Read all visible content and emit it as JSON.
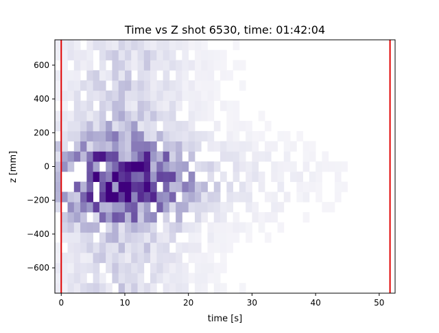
{
  "chart_data": {
    "type": "heatmap",
    "title": "Time vs Z shot 6530, time: 01:42:04",
    "xlabel": "time [s]",
    "ylabel": "z [mm]",
    "xlim": [
      -1,
      52.5
    ],
    "ylim": [
      -750,
      750
    ],
    "xticks": [
      0,
      10,
      20,
      30,
      40,
      50
    ],
    "yticks": [
      -600,
      -400,
      -200,
      0,
      200,
      400,
      600
    ],
    "colormap": "Purples",
    "grid": false,
    "legend": "none",
    "markers": [
      {
        "x": 0.0,
        "color": "#e00000"
      },
      {
        "x": 51.7,
        "color": "#e00000"
      }
    ],
    "bins": {
      "x_start": -1.0,
      "x_step": 1.0,
      "y_start": -750,
      "y_step": 60,
      "x_count": 53,
      "y_count": 25
    },
    "density_model": {
      "time_center": 10,
      "time_width": 9,
      "time_tail": 0.28,
      "tail_width": 28,
      "z_center": -80,
      "z_width": 230,
      "z_floor": 0.25,
      "max_level": 0.92,
      "seed": 6530
    }
  }
}
